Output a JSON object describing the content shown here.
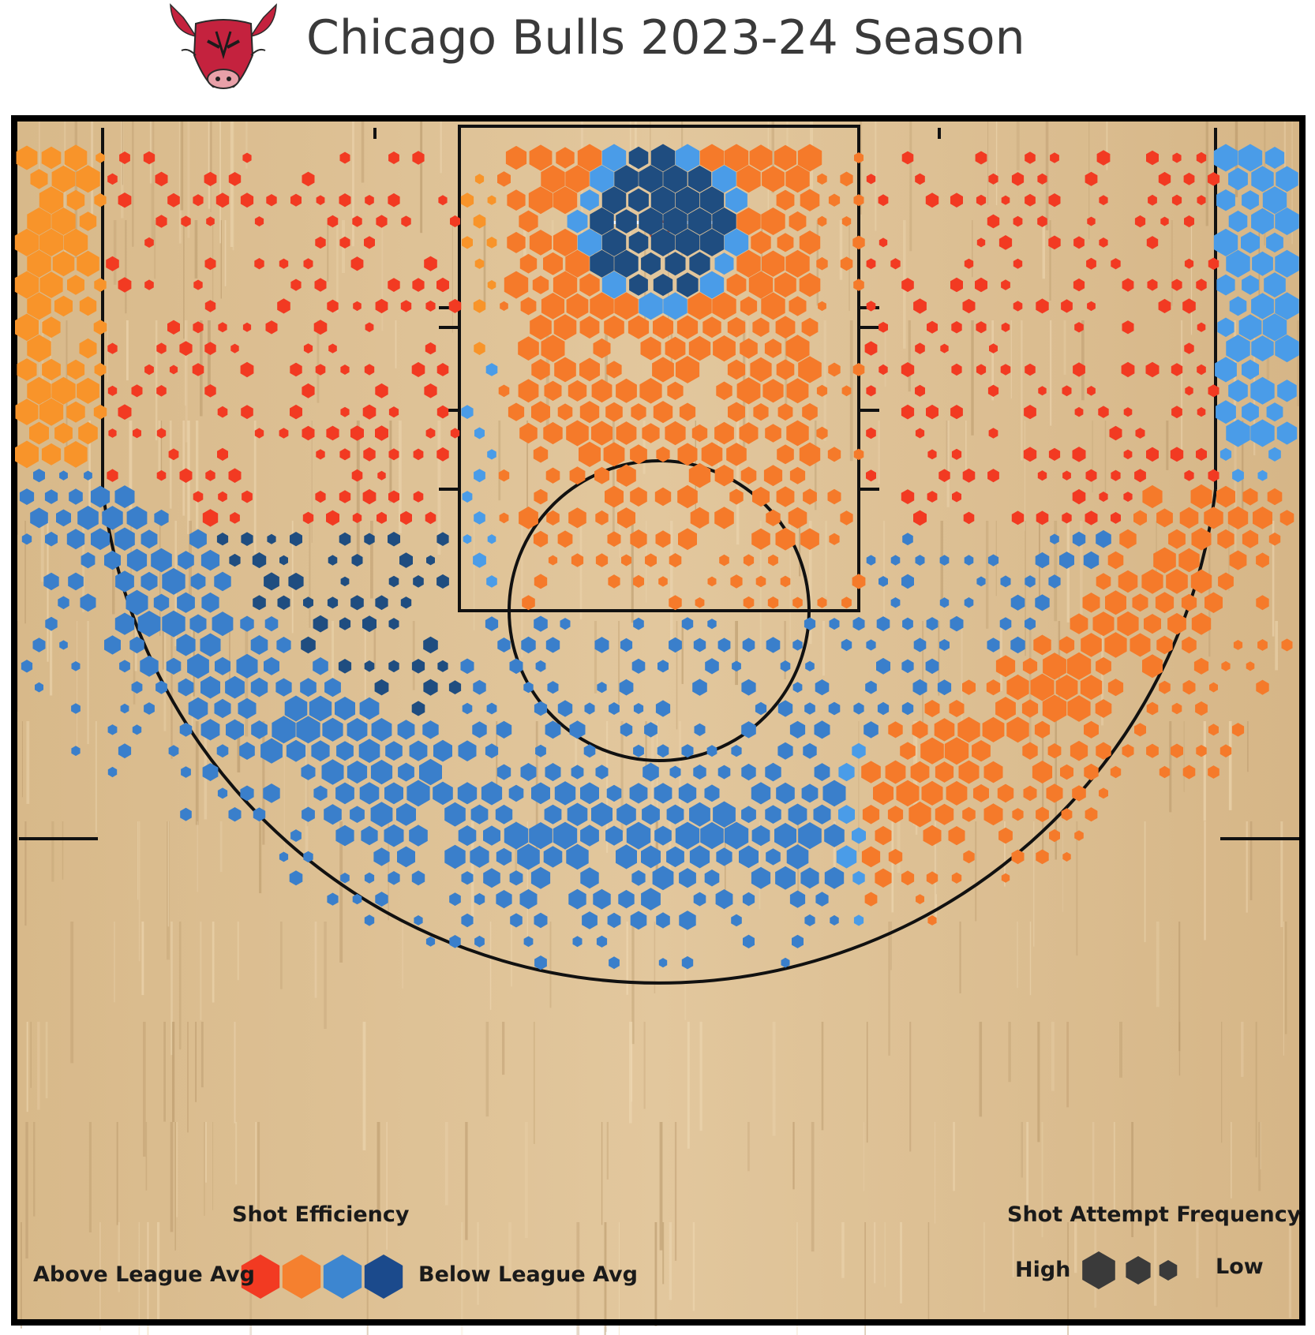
{
  "chart_data": {
    "type": "hexbin",
    "title": "Chicago Bulls 2023-24 Season",
    "court": "half-court",
    "colors": {
      "above_league_avg": "#f23a22",
      "above": "#f57a2a",
      "slightly_above": "#f8942a",
      "slightly_below": "#4a9ce8",
      "below": "#3a7fcb",
      "below_league_avg": "#1f4d80",
      "wood": "#dcc094",
      "lines": "#111111"
    },
    "zones": [
      {
        "zone": "restricted area",
        "efficiency": "below league avg",
        "frequency": "high"
      },
      {
        "zone": "paint (non-RA)",
        "efficiency": "above",
        "frequency": "high"
      },
      {
        "zone": "left corner three",
        "efficiency": "slightly above",
        "frequency": "high"
      },
      {
        "zone": "right corner three",
        "efficiency": "slightly below",
        "frequency": "high"
      },
      {
        "zone": "left baseline mid-range",
        "efficiency": "above league avg",
        "frequency": "low"
      },
      {
        "zone": "right baseline mid-range",
        "efficiency": "above league avg",
        "frequency": "low"
      },
      {
        "zone": "left wing mid-range",
        "efficiency": "below league avg",
        "frequency": "low"
      },
      {
        "zone": "top of key mid-range",
        "efficiency": "below",
        "frequency": "medium"
      },
      {
        "zone": "right wing mid-range",
        "efficiency": "below",
        "frequency": "low"
      },
      {
        "zone": "left wing three",
        "efficiency": "below",
        "frequency": "high"
      },
      {
        "zone": "top of key three",
        "efficiency": "below",
        "frequency": "high"
      },
      {
        "zone": "right wing three",
        "efficiency": "above",
        "frequency": "high"
      }
    ]
  },
  "legend": {
    "efficiency_title": "Shot Efficiency",
    "above_label": "Above League Avg",
    "below_label": "Below League Avg",
    "efficiency_colors": [
      "#f23a22",
      "#f5802f",
      "#3d86d0",
      "#1b4a8c"
    ],
    "frequency_title": "Shot Attempt Frequency",
    "high_label": "High",
    "low_label": "Low",
    "frequency_color": "#3a3a3a"
  },
  "logo": {
    "icon": "chicago-bulls-logo",
    "color": "#c4223e"
  }
}
